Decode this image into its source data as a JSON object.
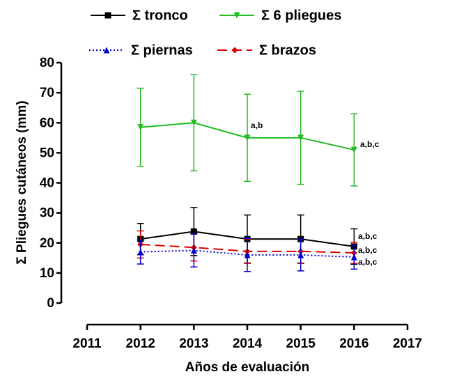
{
  "chart_data": {
    "type": "line",
    "y_label": "Σ Pliegues cutáneos (mm)",
    "x_label": "Años de evaluación",
    "x": [
      2012,
      2013,
      2014,
      2015,
      2016
    ],
    "xlim": [
      2011,
      2017
    ],
    "xticks": [
      2011,
      2012,
      2013,
      2014,
      2015,
      2016,
      2017
    ],
    "ylim": [
      0,
      80
    ],
    "yticks": [
      0,
      10,
      20,
      30,
      40,
      50,
      60,
      70,
      80
    ],
    "series": [
      {
        "name": "Σ 6 pliegues",
        "color": "#22bb22",
        "dash": "solid",
        "marker": "triangle-down",
        "values": [
          58.5,
          60,
          55,
          55,
          51
        ],
        "errors": [
          13,
          16,
          14.5,
          15.5,
          12
        ]
      },
      {
        "name": "Σ tronco",
        "color": "#000000",
        "dash": "solid",
        "marker": "square",
        "values": [
          21.3,
          23.8,
          21.3,
          21.3,
          18.8
        ],
        "errors": [
          5.2,
          8,
          8,
          8,
          5.9
        ]
      },
      {
        "name": "Σ brazos",
        "color": "#dd0000",
        "dash": "dashed",
        "marker": "diamond",
        "values": [
          19.5,
          18.5,
          17.2,
          17.2,
          16.7
        ],
        "errors": [
          4.5,
          4.5,
          4,
          4,
          3.5
        ]
      },
      {
        "name": "Σ piernas",
        "color": "#0000cc",
        "dash": "dotted",
        "marker": "triangle-up",
        "values": [
          17,
          17.5,
          16,
          16,
          15.3
        ],
        "errors": [
          4,
          5.5,
          5.5,
          5.3,
          4
        ]
      }
    ],
    "annotations": [
      "a,b",
      "a,b,c",
      "a,b,c",
      "a,b,c",
      "a,b,c"
    ]
  }
}
